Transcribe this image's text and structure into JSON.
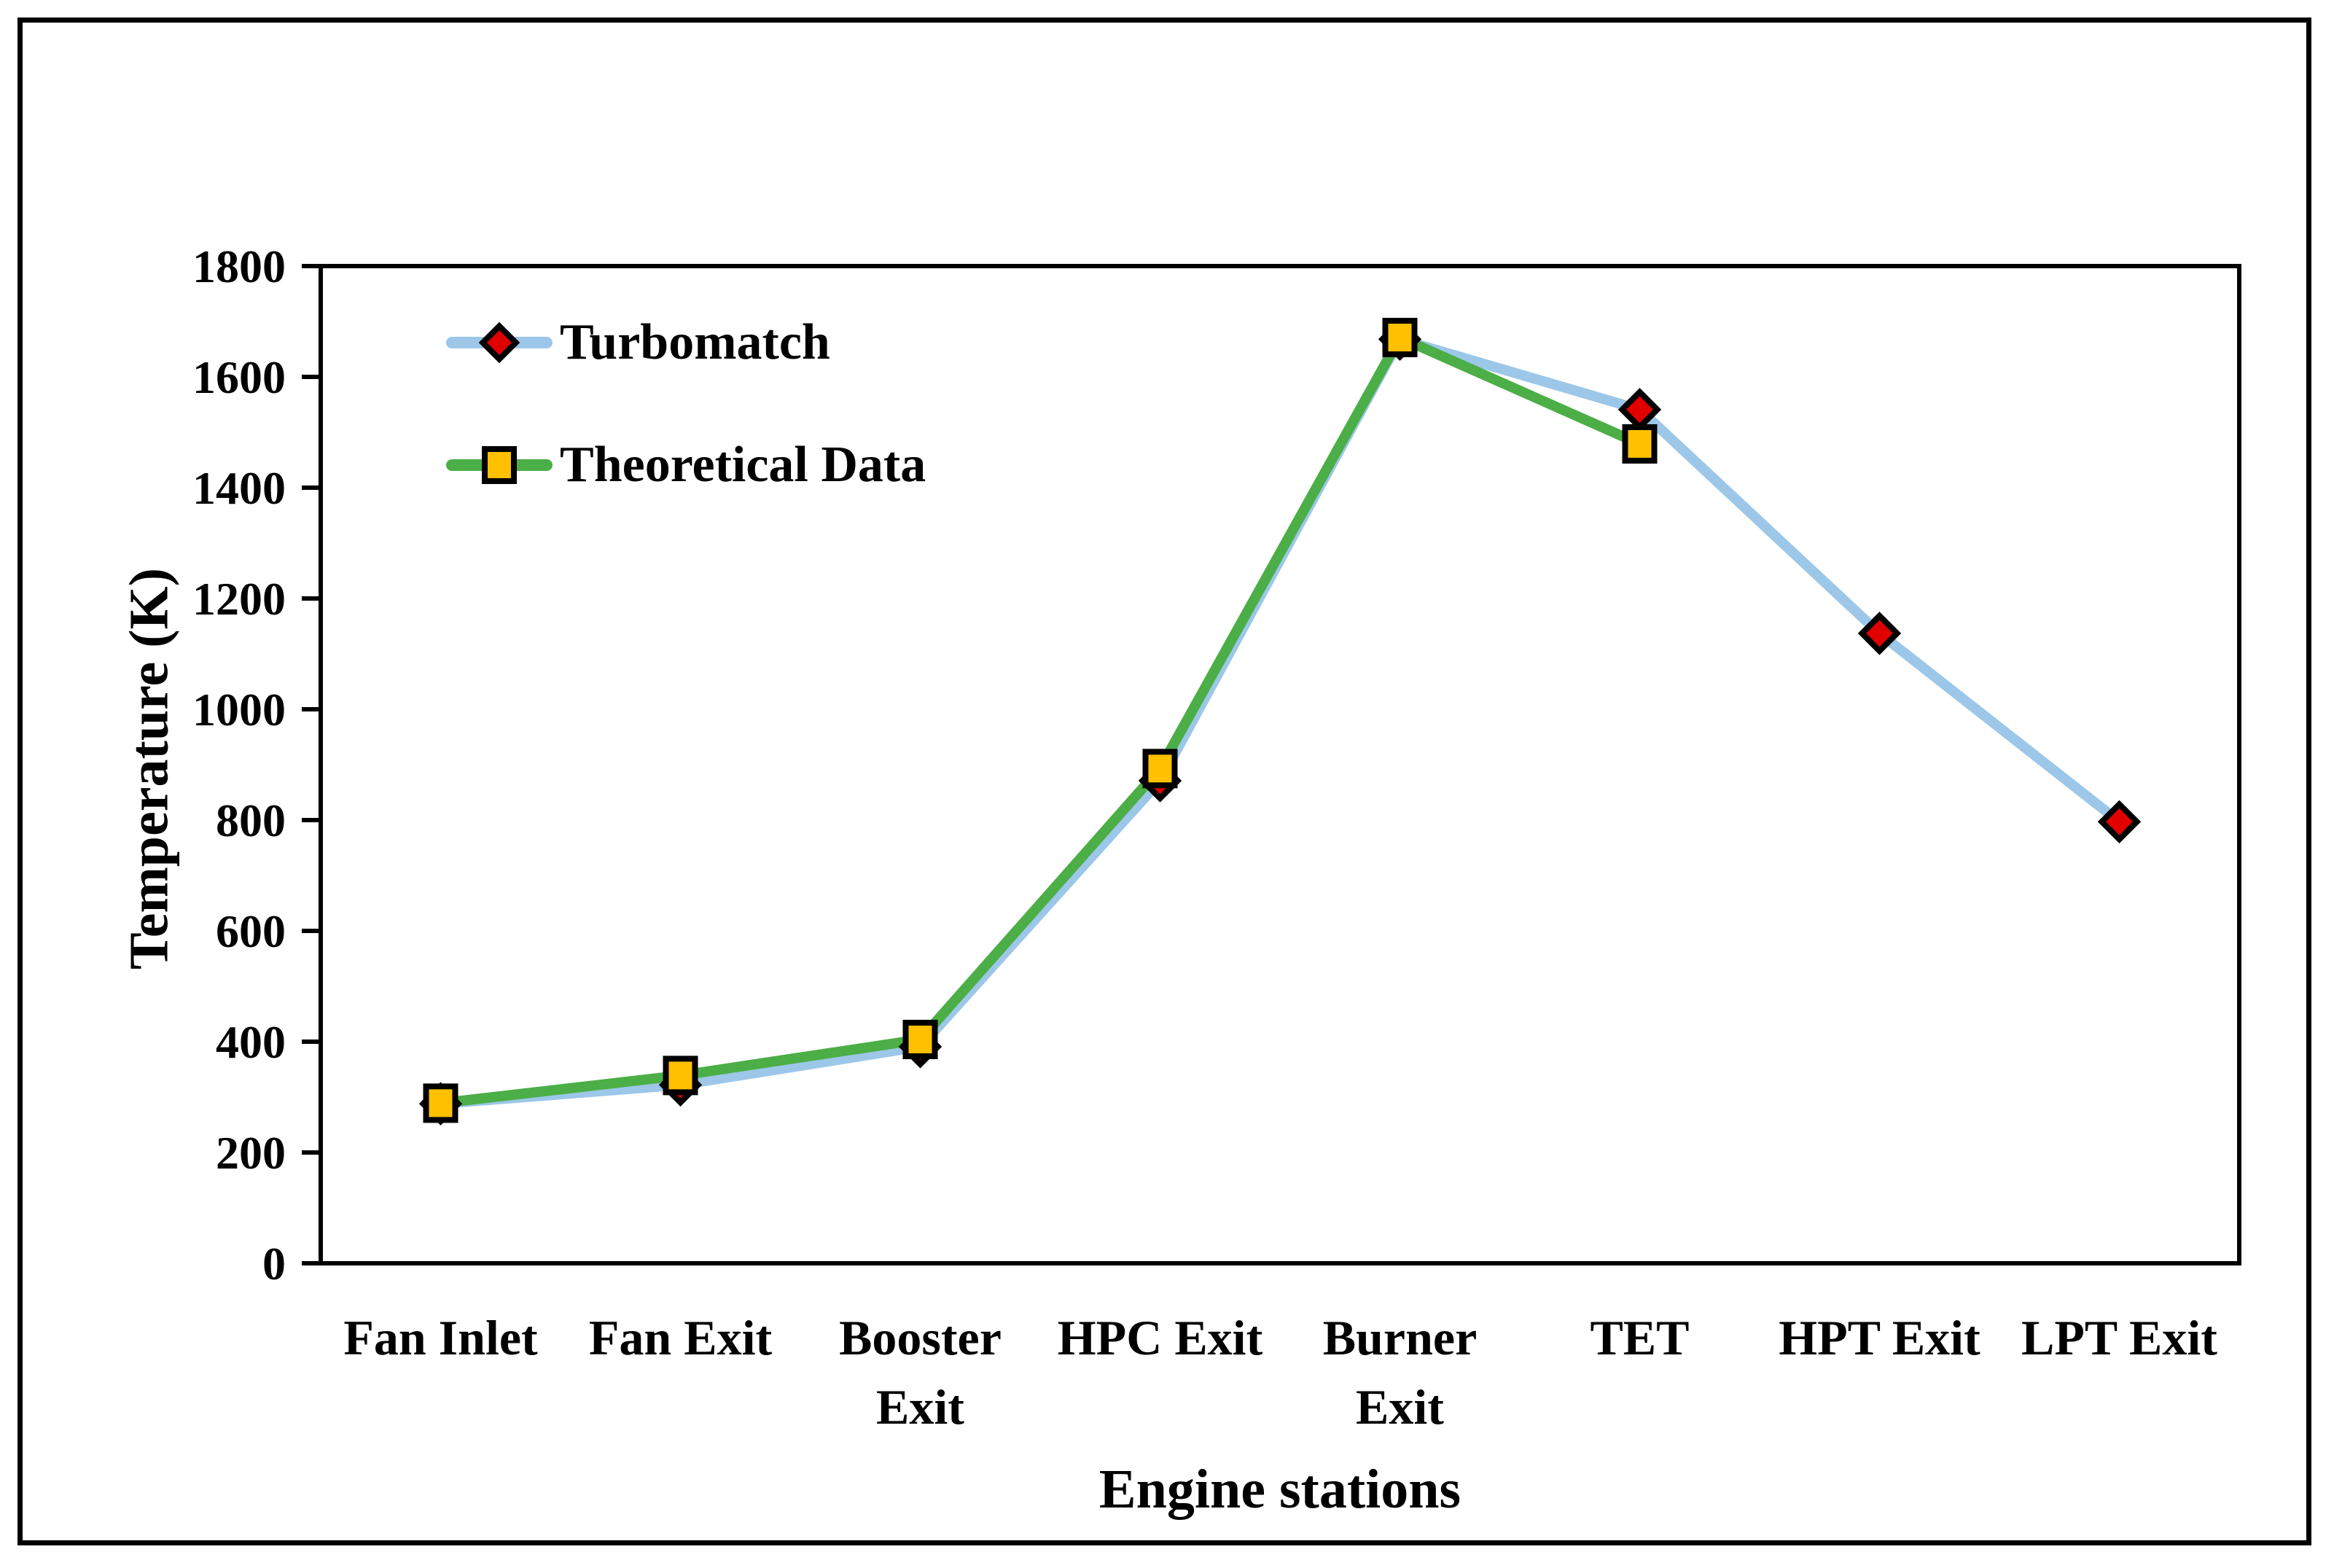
{
  "figure": {
    "background": "#ffffff",
    "border_color": "#000000"
  },
  "chart_data": {
    "type": "line",
    "title": "",
    "xlabel": "Engine stations",
    "ylabel": "Temperature (K)",
    "categories": [
      "Fan Inlet",
      "Fan Exit",
      "Booster\nExit",
      "HPC Exit",
      "Burner\nExit",
      "TET",
      "HPT Exit",
      "LPT Exit"
    ],
    "ylim": [
      0,
      1800
    ],
    "ytick_step": 200,
    "ytick_labels": [
      "0",
      "200",
      "400",
      "600",
      "800",
      "1000",
      "1200",
      "1400",
      "1600",
      "1800"
    ],
    "grid": false,
    "legend_position": "top-left",
    "axis_color": "#000000",
    "series": [
      {
        "name": "Turbomatch",
        "type": "line",
        "line_color": "#9CC7E8",
        "marker": "diamond",
        "marker_color": "#E00000",
        "marker_outline": "#000000",
        "values": [
          288,
          322,
          391,
          871,
          1668,
          1541,
          1137,
          797
        ]
      },
      {
        "name": "Theoretical Data",
        "type": "line",
        "line_color": "#4BAE46",
        "marker": "square",
        "marker_color": "#FFC000",
        "marker_outline": "#000000",
        "values": [
          289,
          339,
          404,
          893,
          1671,
          1479,
          null,
          null
        ]
      }
    ]
  }
}
